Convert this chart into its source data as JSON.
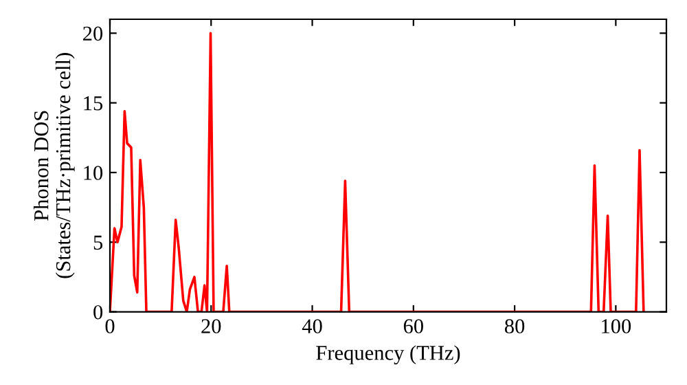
{
  "chart_data": {
    "type": "line",
    "xlabel": "Frequency (THz)",
    "ylabel": "Phonon DOS\n(States/THz·primitive cell)",
    "xlim": [
      0,
      110
    ],
    "ylim": [
      0,
      21
    ],
    "xticks": [
      0,
      20,
      40,
      60,
      80,
      100
    ],
    "yticks": [
      0,
      5,
      10,
      15,
      20
    ],
    "grid": false,
    "marker": "none",
    "line_style": "solid",
    "series": [
      {
        "color": "#ff0000",
        "x": [
          0,
          0.9,
          1.5,
          2.3,
          2.9,
          3.4,
          4.2,
          4.8,
          5.4,
          6.0,
          6.7,
          7.2,
          12.2,
          13.0,
          13.6,
          14.5,
          15.2,
          15.8,
          16.7,
          17.4,
          18.1,
          18.7,
          19.2,
          19.9,
          20.5,
          22.4,
          23.1,
          23.6,
          45.7,
          46.5,
          47.3,
          95.1,
          95.8,
          96.6,
          97.6,
          98.4,
          99.0,
          104.0,
          104.7,
          105.5
        ],
        "values": [
          0,
          6.0,
          5.0,
          6.1,
          14.4,
          12.1,
          11.8,
          2.6,
          1.4,
          10.9,
          7.5,
          0,
          0,
          6.6,
          4.6,
          0.8,
          0,
          1.6,
          2.5,
          0,
          0,
          1.9,
          0,
          20.0,
          0,
          0,
          3.3,
          0,
          0,
          9.4,
          0,
          0,
          10.5,
          0,
          0,
          6.9,
          0,
          0,
          11.6,
          0
        ]
      }
    ]
  }
}
